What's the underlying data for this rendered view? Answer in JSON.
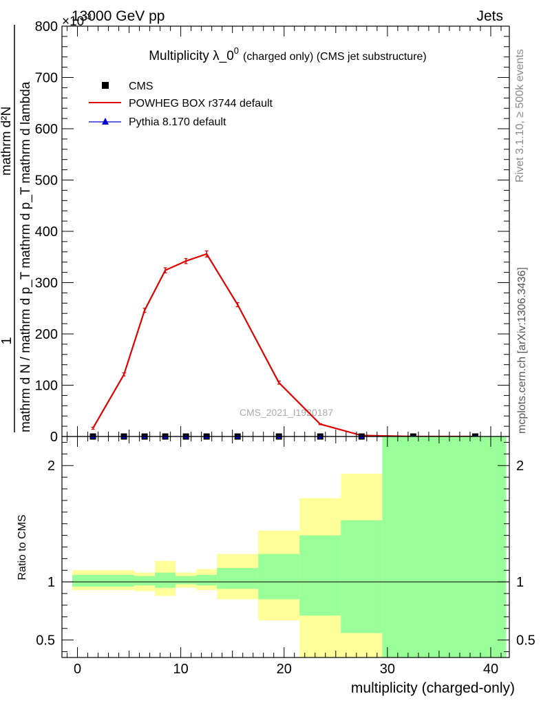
{
  "header": {
    "energy_label": "13000 GeV pp",
    "process_label": "Jets",
    "exponent_label": "×10",
    "exponent_power": "-3"
  },
  "side_labels": {
    "rivet": "Rivet 3.1.10, ≥ 500k events",
    "mcplots": "mcplots.cern.ch [arXiv:1306.3436]"
  },
  "watermark": "CMS_2021_I1920187",
  "chart_data": [
    {
      "type": "line",
      "title": "Multiplicity λ_0",
      "title_sup": "0",
      "title_suffix": "(charged only) (CMS jet substructure)",
      "ylabel_numerator": "1",
      "ylabel_denominator": "mathrm d N / mathrm d p_T mathrm d p_T mathrm d lambda",
      "ylabel_dn": "mathrm d²N",
      "xlim": [
        -1.5,
        41.8
      ],
      "ylim": [
        0,
        800
      ],
      "y_scale_exponent": -3,
      "yticks": [
        0,
        100,
        200,
        300,
        400,
        500,
        600,
        700,
        800
      ],
      "ytick_labels": [
        "0",
        "100",
        "200",
        "300",
        "400",
        "500",
        "600",
        "700",
        "800"
      ],
      "legend_position": "top-left",
      "legend": [
        {
          "label": "CMS",
          "marker": "square",
          "color": "#000000"
        },
        {
          "label": "POWHEG BOX r3744 default",
          "marker": "line",
          "color": "#e00000"
        },
        {
          "label": "Pythia 8.170 default",
          "marker": "triangle",
          "color": "#0000cc"
        }
      ],
      "series": [
        {
          "name": "POWHEG BOX r3744 default",
          "color": "#e00000",
          "x": [
            1.5,
            4.5,
            6.5,
            8.5,
            10.5,
            12.5,
            15.5,
            19.5,
            23.5,
            27.5,
            32.5,
            38.5
          ],
          "y": [
            16,
            121,
            246,
            324,
            342,
            356,
            257,
            105,
            24,
            2,
            0,
            0
          ],
          "err": [
            2,
            3,
            4,
            5,
            5,
            6,
            4,
            3,
            1,
            0.5,
            0,
            0
          ]
        },
        {
          "name": "CMS",
          "color": "#000000",
          "x": [
            1.5,
            4.5,
            6.5,
            8.5,
            10.5,
            12.5,
            15.5,
            19.5,
            23.5,
            27.5,
            32.5,
            38.5
          ],
          "y": [
            0,
            0,
            0,
            0,
            0,
            0,
            0,
            0,
            0,
            0,
            0,
            0
          ]
        },
        {
          "name": "Pythia 8.170 default",
          "color": "#0000cc",
          "x": [
            1.5,
            4.5,
            6.5,
            8.5,
            10.5,
            12.5,
            15.5,
            19.5,
            23.5,
            27.5,
            32.5,
            38.5
          ],
          "y": [
            0,
            0,
            0,
            0,
            0,
            0,
            0,
            0,
            0,
            0,
            0,
            0
          ]
        }
      ]
    },
    {
      "type": "area",
      "ylabel": "Ratio to CMS",
      "xlabel": "multiplicity (charged-only)",
      "xlim": [
        -1.5,
        41.8
      ],
      "ylim": [
        0.35,
        2.25
      ],
      "xticks": [
        0,
        10,
        20,
        30,
        40
      ],
      "xtick_labels": [
        "0",
        "10",
        "20",
        "30",
        "40"
      ],
      "yticks": [
        0.5,
        1,
        2
      ],
      "ytick_labels": [
        "0.5",
        "1",
        "2"
      ],
      "reference_line": 1,
      "bands": [
        {
          "x0": -0.5,
          "x1": 3.5,
          "inner_lo": 0.96,
          "inner_hi": 1.06,
          "outer_lo": 0.93,
          "outer_hi": 1.1
        },
        {
          "x0": 3.5,
          "x1": 5.5,
          "inner_lo": 0.96,
          "inner_hi": 1.06,
          "outer_lo": 0.93,
          "outer_hi": 1.1
        },
        {
          "x0": 5.5,
          "x1": 7.5,
          "inner_lo": 0.97,
          "inner_hi": 1.05,
          "outer_lo": 0.92,
          "outer_hi": 1.08
        },
        {
          "x0": 7.5,
          "x1": 9.5,
          "inner_lo": 0.95,
          "inner_hi": 1.08,
          "outer_lo": 0.88,
          "outer_hi": 1.18
        },
        {
          "x0": 9.5,
          "x1": 11.5,
          "inner_lo": 0.98,
          "inner_hi": 1.05,
          "outer_lo": 0.95,
          "outer_hi": 1.08
        },
        {
          "x0": 11.5,
          "x1": 13.5,
          "inner_lo": 0.97,
          "inner_hi": 1.06,
          "outer_lo": 0.93,
          "outer_hi": 1.11
        },
        {
          "x0": 13.5,
          "x1": 17.5,
          "inner_lo": 0.94,
          "inner_hi": 1.12,
          "outer_lo": 0.85,
          "outer_hi": 1.24
        },
        {
          "x0": 17.5,
          "x1": 21.5,
          "inner_lo": 0.85,
          "inner_hi": 1.24,
          "outer_lo": 0.67,
          "outer_hi": 1.44
        },
        {
          "x0": 21.5,
          "x1": 25.5,
          "inner_lo": 0.71,
          "inner_hi": 1.4,
          "outer_lo": 0.3,
          "outer_hi": 1.72
        },
        {
          "x0": 25.5,
          "x1": 29.5,
          "inner_lo": 0.56,
          "inner_hi": 1.53,
          "outer_lo": 0.3,
          "outer_hi": 1.93
        },
        {
          "x0": 29.5,
          "x1": 41.5,
          "inner_lo": 0.3,
          "inner_hi": 2.3,
          "outer_lo": 0.3,
          "outer_hi": 2.3
        }
      ]
    }
  ]
}
